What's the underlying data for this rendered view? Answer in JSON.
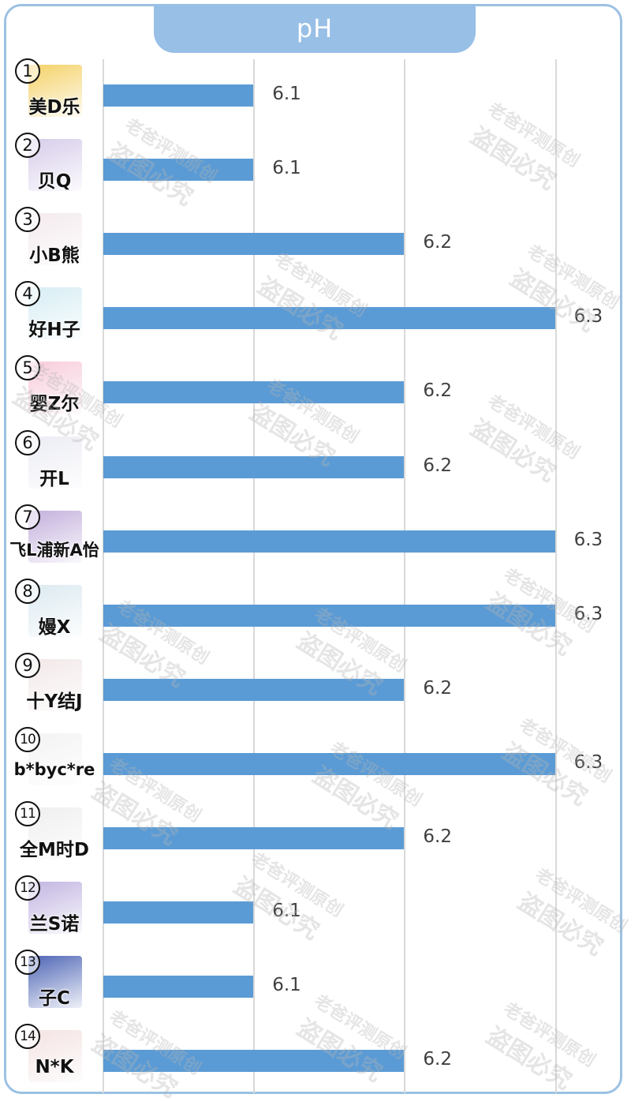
{
  "header": {
    "title": "pH"
  },
  "watermark": {
    "line1": "老爸评测原创",
    "line2": "盗图必究"
  },
  "products": [
    {
      "index": "①",
      "name": "美D乐",
      "value": 6.1,
      "value_label": "6.1",
      "thumb_color": "#f2c94c"
    },
    {
      "index": "②",
      "name": "贝Q",
      "value": 6.1,
      "value_label": "6.1",
      "thumb_color": "#cfc3e6"
    },
    {
      "index": "③",
      "name": "小B熊",
      "value": 6.2,
      "value_label": "6.2",
      "thumb_color": "#f1e6ea"
    },
    {
      "index": "④",
      "name": "好H子",
      "value": 6.3,
      "value_label": "6.3",
      "thumb_color": "#cfeaf2"
    },
    {
      "index": "⑤",
      "name": "婴Z尔",
      "value": 6.2,
      "value_label": "6.2",
      "thumb_color": "#f6c3d3"
    },
    {
      "index": "⑥",
      "name": "开L",
      "value": 6.2,
      "value_label": "6.2",
      "thumb_color": "#e8e9f2"
    },
    {
      "index": "⑦",
      "name": "飞L浦新A怡",
      "value": 6.3,
      "value_label": "6.3",
      "thumb_color": "#b9a2d6"
    },
    {
      "index": "⑧",
      "name": "嫚X",
      "value": 6.3,
      "value_label": "6.3",
      "thumb_color": "#d6e6ee"
    },
    {
      "index": "⑨",
      "name": "十Y结J",
      "value": 6.2,
      "value_label": "6.2",
      "thumb_color": "#f0e4e4"
    },
    {
      "index": "⑩",
      "name": "b*byc*re",
      "value": 6.3,
      "value_label": "6.3",
      "thumb_color": "#f1f1f1"
    },
    {
      "index": "⑪",
      "name": "全M时D",
      "value": 6.2,
      "value_label": "6.2",
      "thumb_color": "#ececec"
    },
    {
      "index": "⑫",
      "name": "兰S诺",
      "value": 6.1,
      "value_label": "6.1",
      "thumb_color": "#b7a8dc"
    },
    {
      "index": "⑬",
      "name": "子C",
      "value": 6.1,
      "value_label": "6.1",
      "thumb_color": "#2f4aa8"
    },
    {
      "index": "⑭",
      "name": "N*K",
      "value": 6.2,
      "value_label": "6.2",
      "thumb_color": "#f2dede"
    }
  ],
  "chart_data": {
    "type": "bar",
    "orientation": "horizontal",
    "title": "pH",
    "xlabel": "",
    "ylabel": "",
    "categories": [
      "美D乐",
      "贝Q",
      "小B熊",
      "好H子",
      "婴Z尔",
      "开L",
      "飞L浦新A怡",
      "嫚X",
      "十Y结J",
      "b*byc*re",
      "全M时D",
      "兰S诺",
      "子C",
      "N*K"
    ],
    "values": [
      6.1,
      6.1,
      6.2,
      6.3,
      6.2,
      6.2,
      6.3,
      6.3,
      6.2,
      6.3,
      6.2,
      6.1,
      6.1,
      6.2
    ],
    "xlim": [
      6.0,
      6.3
    ],
    "grid": true,
    "gridlines_at": [
      6.0,
      6.1,
      6.2,
      6.3
    ],
    "data_labels": true,
    "legend": "none",
    "bar_color": "#5b9bd5"
  }
}
